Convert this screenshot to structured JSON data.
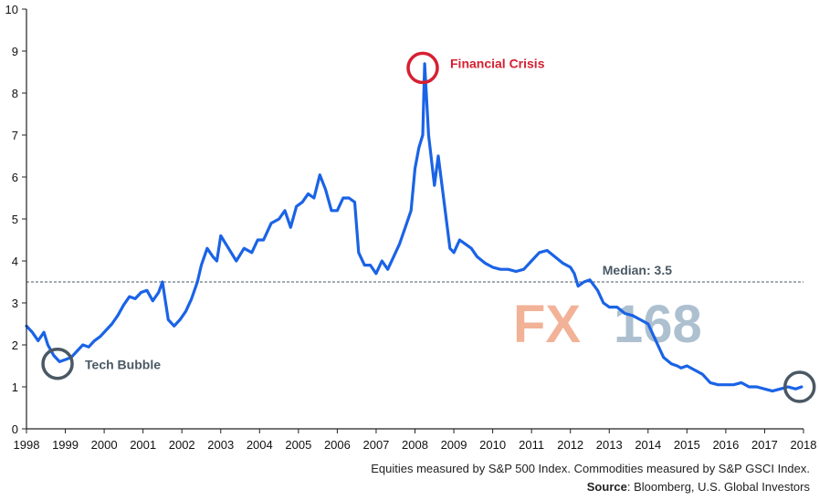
{
  "chart_data": {
    "type": "line",
    "x_ticks": [
      "1998",
      "1999",
      "2000",
      "2001",
      "2002",
      "2003",
      "2004",
      "2005",
      "2006",
      "2007",
      "2008",
      "2009",
      "2010",
      "2011",
      "2012",
      "2013",
      "2014",
      "2015",
      "2016",
      "2017",
      "2018"
    ],
    "y_ticks": [
      "0",
      "1",
      "2",
      "3",
      "4",
      "5",
      "6",
      "7",
      "8",
      "9",
      "10"
    ],
    "xlim": [
      1998,
      2018
    ],
    "ylim": [
      0,
      10
    ],
    "series": [
      {
        "color": "#1a63e6",
        "x": [
          1998.0,
          1998.15,
          1998.3,
          1998.45,
          1998.55,
          1998.7,
          1998.85,
          1999.0,
          1999.15,
          1999.3,
          1999.45,
          1999.6,
          1999.75,
          1999.9,
          2000.05,
          2000.2,
          2000.35,
          2000.5,
          2000.65,
          2000.8,
          2000.95,
          2001.1,
          2001.25,
          2001.4,
          2001.5,
          2001.65,
          2001.8,
          2001.95,
          2002.1,
          2002.25,
          2002.4,
          2002.5,
          2002.65,
          2002.8,
          2002.9,
          2003.0,
          2003.2,
          2003.4,
          2003.6,
          2003.8,
          2003.95,
          2004.1,
          2004.3,
          2004.5,
          2004.65,
          2004.8,
          2004.95,
          2005.1,
          2005.25,
          2005.4,
          2005.55,
          2005.7,
          2005.85,
          2006.0,
          2006.15,
          2006.3,
          2006.45,
          2006.55,
          2006.7,
          2006.85,
          2007.0,
          2007.15,
          2007.3,
          2007.45,
          2007.6,
          2007.75,
          2007.9,
          2008.0,
          2008.1,
          2008.2,
          2008.25,
          2008.35,
          2008.5,
          2008.6,
          2008.75,
          2008.9,
          2009.0,
          2009.15,
          2009.3,
          2009.45,
          2009.6,
          2009.8,
          2010.0,
          2010.2,
          2010.4,
          2010.6,
          2010.8,
          2011.0,
          2011.2,
          2011.4,
          2011.6,
          2011.8,
          2012.0,
          2012.1,
          2012.2,
          2012.35,
          2012.5,
          2012.7,
          2012.85,
          2013.0,
          2013.2,
          2013.4,
          2013.6,
          2013.8,
          2014.0,
          2014.2,
          2014.4,
          2014.6,
          2014.75,
          2014.85,
          2015.0,
          2015.2,
          2015.4,
          2015.6,
          2015.8,
          2016.0,
          2016.2,
          2016.4,
          2016.6,
          2016.8,
          2017.0,
          2017.2,
          2017.4,
          2017.6,
          2017.8,
          2017.95
        ],
        "values": [
          2.45,
          2.3,
          2.1,
          2.3,
          2.0,
          1.75,
          1.6,
          1.65,
          1.7,
          1.85,
          2.0,
          1.95,
          2.1,
          2.2,
          2.35,
          2.5,
          2.7,
          2.95,
          3.15,
          3.1,
          3.25,
          3.3,
          3.05,
          3.25,
          3.5,
          2.6,
          2.45,
          2.6,
          2.8,
          3.1,
          3.5,
          3.9,
          4.3,
          4.1,
          4.0,
          4.6,
          4.3,
          4.0,
          4.3,
          4.2,
          4.5,
          4.5,
          4.9,
          5.0,
          5.2,
          4.8,
          5.3,
          5.4,
          5.6,
          5.5,
          6.05,
          5.7,
          5.2,
          5.2,
          5.5,
          5.5,
          5.4,
          4.2,
          3.9,
          3.9,
          3.7,
          4.0,
          3.8,
          4.1,
          4.4,
          4.8,
          5.2,
          6.2,
          6.7,
          7.0,
          8.7,
          7.0,
          5.8,
          6.5,
          5.4,
          4.3,
          4.2,
          4.5,
          4.4,
          4.3,
          4.1,
          3.95,
          3.85,
          3.8,
          3.8,
          3.75,
          3.8,
          4.0,
          4.2,
          4.25,
          4.1,
          3.95,
          3.85,
          3.7,
          3.4,
          3.5,
          3.55,
          3.3,
          3.0,
          2.9,
          2.9,
          2.75,
          2.7,
          2.6,
          2.5,
          2.1,
          1.7,
          1.55,
          1.5,
          1.45,
          1.5,
          1.4,
          1.3,
          1.1,
          1.05,
          1.05,
          1.05,
          1.1,
          1.0,
          1.0,
          0.95,
          0.9,
          0.95,
          1.0,
          0.95,
          1.0
        ]
      }
    ],
    "median": {
      "value": 3.5,
      "label": "Median: 3.5"
    },
    "annotations": [
      {
        "label": "Financial Crisis",
        "x": 2008.2,
        "y": 8.6,
        "ring_color": "#d62031",
        "text_color": "#d62031"
      },
      {
        "label": "Tech Bubble",
        "x": 1998.8,
        "y": 1.55,
        "ring_color": "#4a5864",
        "text_color": "#4a5864"
      },
      {
        "label": "",
        "x": 2017.9,
        "y": 1.0,
        "ring_color": "#4a5864",
        "text_color": "#4a5864"
      }
    ],
    "grid": false,
    "footnote": "Equities measured by S&P 500 Index. Commodities measured by S&P GSCI Index.",
    "source_label": "Source",
    "source_text": ": Bloomberg, U.S. Global Investors",
    "watermark": "FX168",
    "colors": {
      "line": "#1a63e6",
      "median": "#4a5864",
      "axis": "#222222",
      "crisis": "#d62031",
      "ring": "#4a5864",
      "watermark_fx": "#f0a585",
      "watermark_num": "#9fb5c8"
    }
  }
}
